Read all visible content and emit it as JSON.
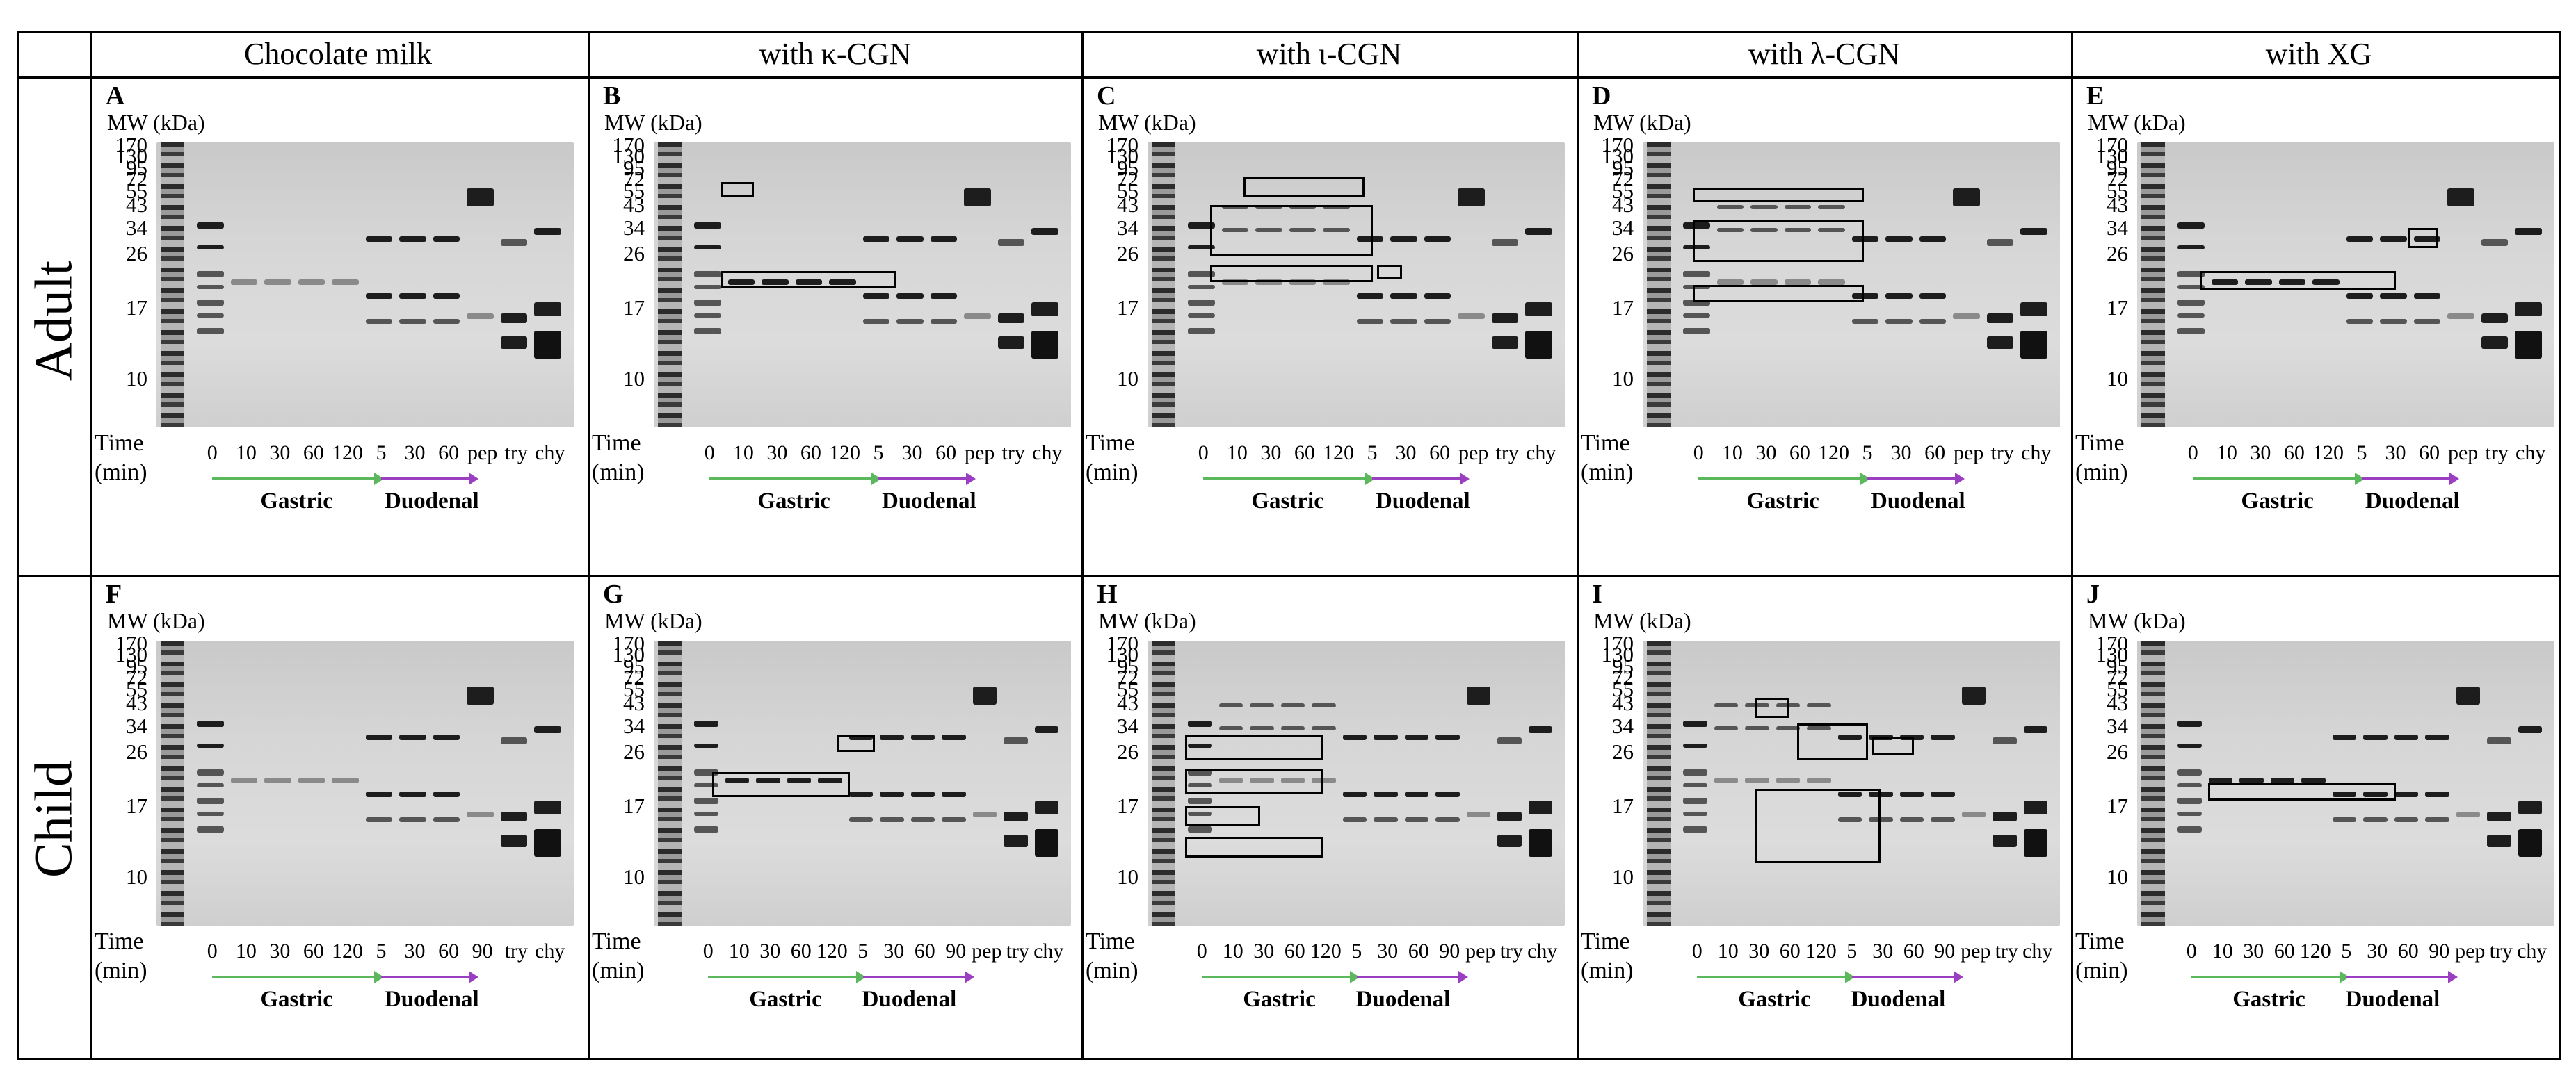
{
  "columns": [
    "Chocolate milk",
    "with κ-CGN",
    "with ι-CGN",
    "with λ-CGN",
    "with XG"
  ],
  "rows": [
    "Adult",
    "Child"
  ],
  "colors": {
    "gastric_arrow": "#5cb85c",
    "duodenal_arrow": "#9b3fc2",
    "gel_background": "#d4d4d4",
    "band": "#222222"
  },
  "common": {
    "mw_title": "MW (kDa)",
    "mw_ticks": [
      "170",
      "130",
      "95",
      "72",
      "55",
      "43",
      "34",
      "26",
      "17",
      "10"
    ],
    "time_label": "Time",
    "time_unit": "(min)",
    "gastric": "Gastric",
    "duodenal": "Duodenal"
  },
  "panels": [
    {
      "letter": "A",
      "lanes": [
        "0",
        "10",
        "30",
        "60",
        "120",
        "5",
        "30",
        "60",
        "pep",
        "try",
        "chy"
      ]
    },
    {
      "letter": "B",
      "lanes": [
        "0",
        "10",
        "30",
        "60",
        "120",
        "5",
        "30",
        "60",
        "pep",
        "try",
        "chy"
      ]
    },
    {
      "letter": "C",
      "lanes": [
        "0",
        "10",
        "30",
        "60",
        "120",
        "5",
        "30",
        "60",
        "pep",
        "try",
        "chy"
      ]
    },
    {
      "letter": "D",
      "lanes": [
        "0",
        "10",
        "30",
        "60",
        "120",
        "5",
        "30",
        "60",
        "pep",
        "try",
        "chy"
      ]
    },
    {
      "letter": "E",
      "lanes": [
        "0",
        "10",
        "30",
        "60",
        "120",
        "5",
        "30",
        "60",
        "pep",
        "try",
        "chy"
      ]
    },
    {
      "letter": "F",
      "lanes": [
        "0",
        "10",
        "30",
        "60",
        "120",
        "5",
        "30",
        "60",
        "90",
        "try",
        "chy"
      ]
    },
    {
      "letter": "G",
      "lanes": [
        "0",
        "10",
        "30",
        "60",
        "120",
        "5",
        "30",
        "60",
        "90",
        "pep",
        "try",
        "chy"
      ]
    },
    {
      "letter": "H",
      "lanes": [
        "0",
        "10",
        "30",
        "60",
        "120",
        "5",
        "30",
        "60",
        "90",
        "pep",
        "try",
        "chy"
      ]
    },
    {
      "letter": "I",
      "lanes": [
        "0",
        "10",
        "30",
        "60",
        "120",
        "5",
        "30",
        "60",
        "90",
        "pep",
        "try",
        "chy"
      ]
    },
    {
      "letter": "J",
      "lanes": [
        "0",
        "10",
        "30",
        "60",
        "120",
        "5",
        "30",
        "60",
        "90",
        "pep",
        "try",
        "chy"
      ]
    }
  ]
}
